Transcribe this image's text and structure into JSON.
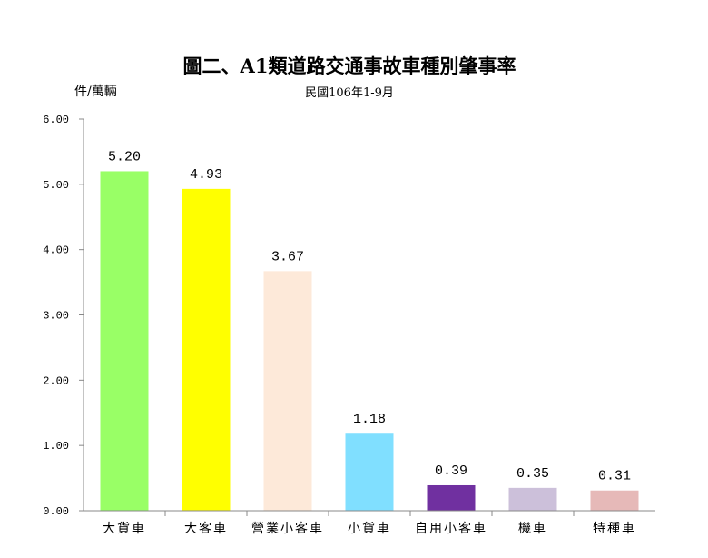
{
  "chart_data": {
    "type": "bar",
    "title": "圖二、A1類道路交通事故車種別肇事率",
    "subtitle": "民國106年1-9月",
    "ylabel": "件/萬輛",
    "xlabel": "",
    "ylim": [
      0,
      6
    ],
    "yticks": [
      "0.00",
      "1.00",
      "2.00",
      "3.00",
      "4.00",
      "5.00",
      "6.00"
    ],
    "grid": false,
    "categories": [
      "大貨車",
      "大客車",
      "營業小客車",
      "小貨車",
      "自用小客車",
      "機車",
      "特種車"
    ],
    "values": [
      5.2,
      4.93,
      3.67,
      1.18,
      0.39,
      0.35,
      0.31
    ],
    "data_labels": [
      "5.20",
      "4.93",
      "3.67",
      "1.18",
      "0.39",
      "0.35",
      "0.31"
    ],
    "colors": [
      "#99ff66",
      "#ffff00",
      "#fde9d9",
      "#80dfff",
      "#7030a0",
      "#ccc0da",
      "#e6b9b8"
    ]
  }
}
